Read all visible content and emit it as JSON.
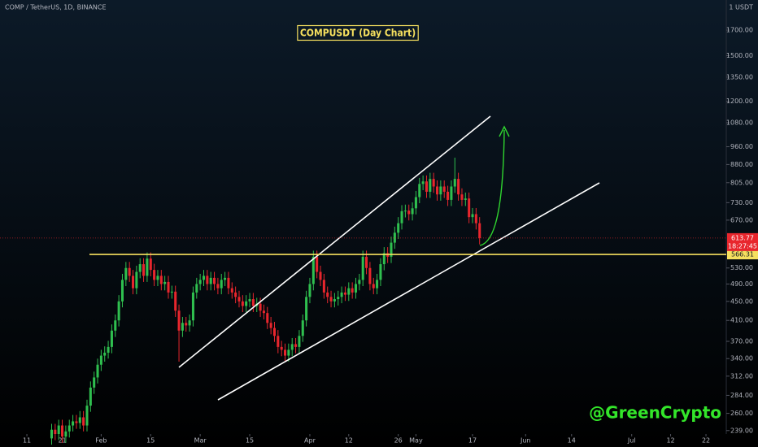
{
  "chart_data": {
    "type": "candlestick",
    "header": "COMP / TetherUS, 1D, BINANCE",
    "title": "COMPUSDT (Day Chart)",
    "watermark": "@GreenCrypto",
    "unit_label": "1 USDT",
    "log_scale": true,
    "grid": false,
    "up_color": "#2fbf4f",
    "down_color": "#e8262d",
    "support_level": 566.31,
    "support_label": "566.31",
    "last_price": 613.77,
    "last_price_label": "613.77",
    "countdown": "18:27:45",
    "ylim": [
      235,
      1970
    ],
    "xlim": [
      3.4,
      208.05
    ],
    "yticks": [
      {
        "value": 1700,
        "label": "1700.00"
      },
      {
        "value": 1500,
        "label": "1500.00"
      },
      {
        "value": 1350,
        "label": "1350.00"
      },
      {
        "value": 1200,
        "label": "1200.00"
      },
      {
        "value": 1080,
        "label": "1080.00"
      },
      {
        "value": 960,
        "label": "960.00"
      },
      {
        "value": 880,
        "label": "880.00"
      },
      {
        "value": 805,
        "label": "805.00"
      },
      {
        "value": 730,
        "label": "730.00"
      },
      {
        "value": 670,
        "label": "670.00"
      },
      {
        "value": 530,
        "label": "530.00"
      },
      {
        "value": 490,
        "label": "490.00"
      },
      {
        "value": 450,
        "label": "450.00"
      },
      {
        "value": 410,
        "label": "410.00"
      },
      {
        "value": 370,
        "label": "370.00"
      },
      {
        "value": 340,
        "label": "340.00"
      },
      {
        "value": 312,
        "label": "312.00"
      },
      {
        "value": 284,
        "label": "284.00"
      },
      {
        "value": 260,
        "label": "260.00"
      },
      {
        "value": 239,
        "label": "239.00"
      }
    ],
    "xticks": [
      {
        "value": 11,
        "label": "11"
      },
      {
        "value": 21,
        "label": "21"
      },
      {
        "value": 32,
        "label": "Feb"
      },
      {
        "value": 46,
        "label": "15"
      },
      {
        "value": 60,
        "label": "Mar"
      },
      {
        "value": 74,
        "label": "15"
      },
      {
        "value": 91,
        "label": "Apr"
      },
      {
        "value": 102,
        "label": "12"
      },
      {
        "value": 116,
        "label": "26"
      },
      {
        "value": 121,
        "label": "May"
      },
      {
        "value": 137,
        "label": "17"
      },
      {
        "value": 152,
        "label": "Jun"
      },
      {
        "value": 165,
        "label": "14"
      },
      {
        "value": 182,
        "label": "Jul"
      },
      {
        "value": 193,
        "label": "12"
      },
      {
        "value": 203,
        "label": "22"
      }
    ],
    "x": [
      18,
      19,
      20,
      21,
      22,
      23,
      24,
      25,
      26,
      27,
      28,
      29,
      30,
      31,
      32,
      33,
      34,
      35,
      36,
      37,
      38,
      39,
      40,
      41,
      42,
      43,
      44,
      45,
      46,
      47,
      48,
      49,
      50,
      51,
      52,
      53,
      54,
      55,
      56,
      57,
      58,
      59,
      60,
      61,
      62,
      63,
      64,
      65,
      66,
      67,
      68,
      69,
      70,
      71,
      72,
      73,
      74,
      75,
      76,
      77,
      78,
      79,
      80,
      81,
      82,
      83,
      84,
      85,
      86,
      87,
      88,
      89,
      90,
      91,
      92,
      93,
      94,
      95,
      96,
      97,
      98,
      99,
      100,
      101,
      102,
      103,
      104,
      105,
      106,
      107,
      108,
      109,
      110,
      111,
      112,
      113,
      114,
      115,
      116,
      117,
      118,
      119,
      120,
      121,
      122,
      123,
      124,
      125,
      126,
      127,
      128,
      129,
      130,
      131,
      132,
      133,
      134,
      135,
      136,
      137,
      138,
      139
    ],
    "ohlc": [
      [
        230,
        247,
        223,
        240
      ],
      [
        240,
        247,
        228,
        235
      ],
      [
        235,
        252,
        228,
        245
      ],
      [
        245,
        252,
        225,
        232
      ],
      [
        232,
        245,
        225,
        238
      ],
      [
        238,
        252,
        231,
        245
      ],
      [
        245,
        258,
        238,
        250
      ],
      [
        250,
        258,
        241,
        248
      ],
      [
        248,
        263,
        241,
        255
      ],
      [
        255,
        263,
        238,
        245
      ],
      [
        245,
        278,
        238,
        270
      ],
      [
        270,
        304,
        262,
        295
      ],
      [
        295,
        319,
        286,
        310
      ],
      [
        310,
        340,
        301,
        330
      ],
      [
        330,
        355,
        320,
        345
      ],
      [
        345,
        361,
        335,
        350
      ],
      [
        350,
        371,
        340,
        360
      ],
      [
        360,
        402,
        349,
        390
      ],
      [
        390,
        422,
        378,
        410
      ],
      [
        410,
        464,
        398,
        450
      ],
      [
        450,
        515,
        437,
        500
      ],
      [
        500,
        546,
        485,
        530
      ],
      [
        530,
        546,
        495,
        510
      ],
      [
        510,
        525,
        466,
        480
      ],
      [
        480,
        536,
        466,
        520
      ],
      [
        520,
        556,
        504,
        540
      ],
      [
        540,
        556,
        495,
        510
      ],
      [
        510,
        572,
        495,
        555
      ],
      [
        555,
        572,
        509,
        525
      ],
      [
        525,
        541,
        485,
        500
      ],
      [
        500,
        525,
        485,
        510
      ],
      [
        510,
        525,
        475,
        490
      ],
      [
        490,
        510,
        475,
        495
      ],
      [
        495,
        510,
        456,
        470
      ],
      [
        470,
        486,
        456,
        472
      ],
      [
        472,
        486,
        417,
        430
      ],
      [
        430,
        443,
        335,
        390
      ],
      [
        390,
        417,
        378,
        405
      ],
      [
        405,
        417,
        388,
        400
      ],
      [
        400,
        422,
        388,
        410
      ],
      [
        410,
        484,
        398,
        470
      ],
      [
        470,
        505,
        456,
        490
      ],
      [
        490,
        515,
        475,
        500
      ],
      [
        500,
        525,
        485,
        510
      ],
      [
        510,
        525,
        475,
        490
      ],
      [
        490,
        520,
        475,
        505
      ],
      [
        505,
        520,
        475,
        490
      ],
      [
        490,
        505,
        466,
        480
      ],
      [
        480,
        515,
        466,
        500
      ],
      [
        500,
        520,
        485,
        505
      ],
      [
        505,
        520,
        466,
        480
      ],
      [
        480,
        494,
        456,
        470
      ],
      [
        470,
        484,
        446,
        460
      ],
      [
        460,
        474,
        437,
        450
      ],
      [
        450,
        464,
        427,
        440
      ],
      [
        440,
        464,
        427,
        450
      ],
      [
        450,
        469,
        437,
        455
      ],
      [
        455,
        469,
        427,
        440
      ],
      [
        440,
        458,
        427,
        445
      ],
      [
        445,
        458,
        417,
        430
      ],
      [
        430,
        443,
        412,
        425
      ],
      [
        425,
        438,
        393,
        405
      ],
      [
        405,
        417,
        383,
        395
      ],
      [
        395,
        407,
        369,
        380
      ],
      [
        380,
        391,
        349,
        360
      ],
      [
        360,
        371,
        344,
        355
      ],
      [
        355,
        366,
        335,
        345
      ],
      [
        345,
        366,
        335,
        355
      ],
      [
        355,
        376,
        344,
        365
      ],
      [
        365,
        376,
        349,
        360
      ],
      [
        360,
        391,
        349,
        380
      ],
      [
        380,
        422,
        369,
        410
      ],
      [
        410,
        474,
        398,
        460
      ],
      [
        460,
        505,
        446,
        490
      ],
      [
        490,
        577,
        475,
        560
      ],
      [
        560,
        577,
        504,
        520
      ],
      [
        520,
        536,
        485,
        500
      ],
      [
        500,
        515,
        456,
        470
      ],
      [
        470,
        484,
        446,
        460
      ],
      [
        460,
        474,
        437,
        450
      ],
      [
        450,
        469,
        437,
        455
      ],
      [
        455,
        474,
        441,
        460
      ],
      [
        460,
        484,
        446,
        470
      ],
      [
        470,
        484,
        451,
        465
      ],
      [
        465,
        494,
        451,
        480
      ],
      [
        480,
        494,
        456,
        470
      ],
      [
        470,
        505,
        456,
        490
      ],
      [
        490,
        515,
        475,
        500
      ],
      [
        500,
        577,
        485,
        560
      ],
      [
        560,
        577,
        514,
        530
      ],
      [
        530,
        546,
        475,
        490
      ],
      [
        490,
        505,
        466,
        480
      ],
      [
        480,
        515,
        466,
        500
      ],
      [
        500,
        556,
        485,
        540
      ],
      [
        540,
        587,
        524,
        570
      ],
      [
        570,
        587,
        543,
        560
      ],
      [
        560,
        618,
        543,
        600
      ],
      [
        600,
        649,
        582,
        630
      ],
      [
        630,
        680,
        611,
        660
      ],
      [
        660,
        721,
        640,
        700
      ],
      [
        700,
        723,
        679,
        702
      ],
      [
        702,
        723,
        669,
        690
      ],
      [
        690,
        731,
        669,
        710
      ],
      [
        710,
        773,
        689,
        750
      ],
      [
        750,
        824,
        728,
        800
      ],
      [
        800,
        834,
        776,
        810
      ],
      [
        810,
        834,
        747,
        770
      ],
      [
        770,
        845,
        747,
        820
      ],
      [
        820,
        845,
        766,
        790
      ],
      [
        790,
        814,
        737,
        760
      ],
      [
        760,
        814,
        737,
        790
      ],
      [
        790,
        814,
        747,
        770
      ],
      [
        770,
        793,
        718,
        740
      ],
      [
        740,
        814,
        718,
        790
      ],
      [
        790,
        910,
        766,
        820
      ],
      [
        820,
        845,
        737,
        760
      ],
      [
        760,
        783,
        718,
        740
      ],
      [
        740,
        767,
        718,
        745
      ],
      [
        745,
        767,
        660,
        680
      ],
      [
        680,
        711,
        660,
        690
      ],
      [
        690,
        711,
        640,
        660
      ],
      [
        660,
        680,
        595,
        613.77
      ]
    ]
  }
}
